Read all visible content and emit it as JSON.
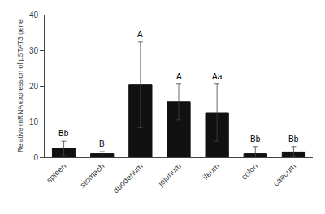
{
  "chart_data": {
    "type": "bar",
    "y_label": "Relative mRNA expression of pSTAT3 gene",
    "categories": [
      "spleen",
      "stomach",
      "duodenum",
      "jejunum",
      "ileum",
      "colon",
      "caecum"
    ],
    "values": [
      2.5,
      1.0,
      20.3,
      15.5,
      12.5,
      1.0,
      1.5
    ],
    "errors": [
      2.0,
      0.6,
      12.0,
      5.0,
      8.0,
      2.0,
      1.5
    ],
    "annotations": [
      "Bb",
      "B",
      "A",
      "A",
      "Aa",
      "Bb",
      "Bb"
    ],
    "color": "#111111",
    "ylim": [
      0,
      40
    ],
    "yticks": [
      0,
      10,
      20,
      30,
      40
    ],
    "grid": false
  }
}
